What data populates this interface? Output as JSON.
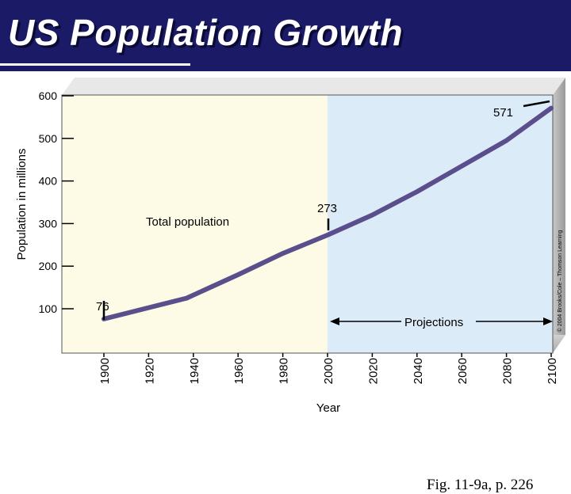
{
  "header": {
    "title": "US Population Growth"
  },
  "caption": "Fig. 11-9a, p. 226",
  "chart_data": {
    "type": "line",
    "ylabel": "Population in millions",
    "xlabel": "Year",
    "xlim": [
      1893,
      2100
    ],
    "ylim": [
      0,
      600
    ],
    "x_ticks": [
      1900,
      1920,
      1940,
      1960,
      1980,
      2000,
      2020,
      2040,
      2060,
      2080,
      2100
    ],
    "y_ticks": [
      100,
      200,
      300,
      400,
      500,
      600
    ],
    "grid": false,
    "regions": [
      {
        "from": 1893,
        "to": 2000,
        "color": "#fdfbe5"
      },
      {
        "from": 2000,
        "to": 2100,
        "color": "#dcebf8"
      }
    ],
    "series": [
      {
        "name": "Total population",
        "color": "#5a4e8c",
        "x": [
          1900,
          1937,
          1960,
          1980,
          2000,
          2020,
          2040,
          2060,
          2080,
          2100
        ],
        "values": [
          76,
          125,
          180,
          230,
          273,
          320,
          375,
          435,
          495,
          571
        ]
      }
    ],
    "annotations": {
      "start_value": "76",
      "mid_value": "273",
      "end_value": "571",
      "projections": "Projections"
    },
    "credit": "© 2004 Brooks/Cole – Thomson Learning"
  }
}
